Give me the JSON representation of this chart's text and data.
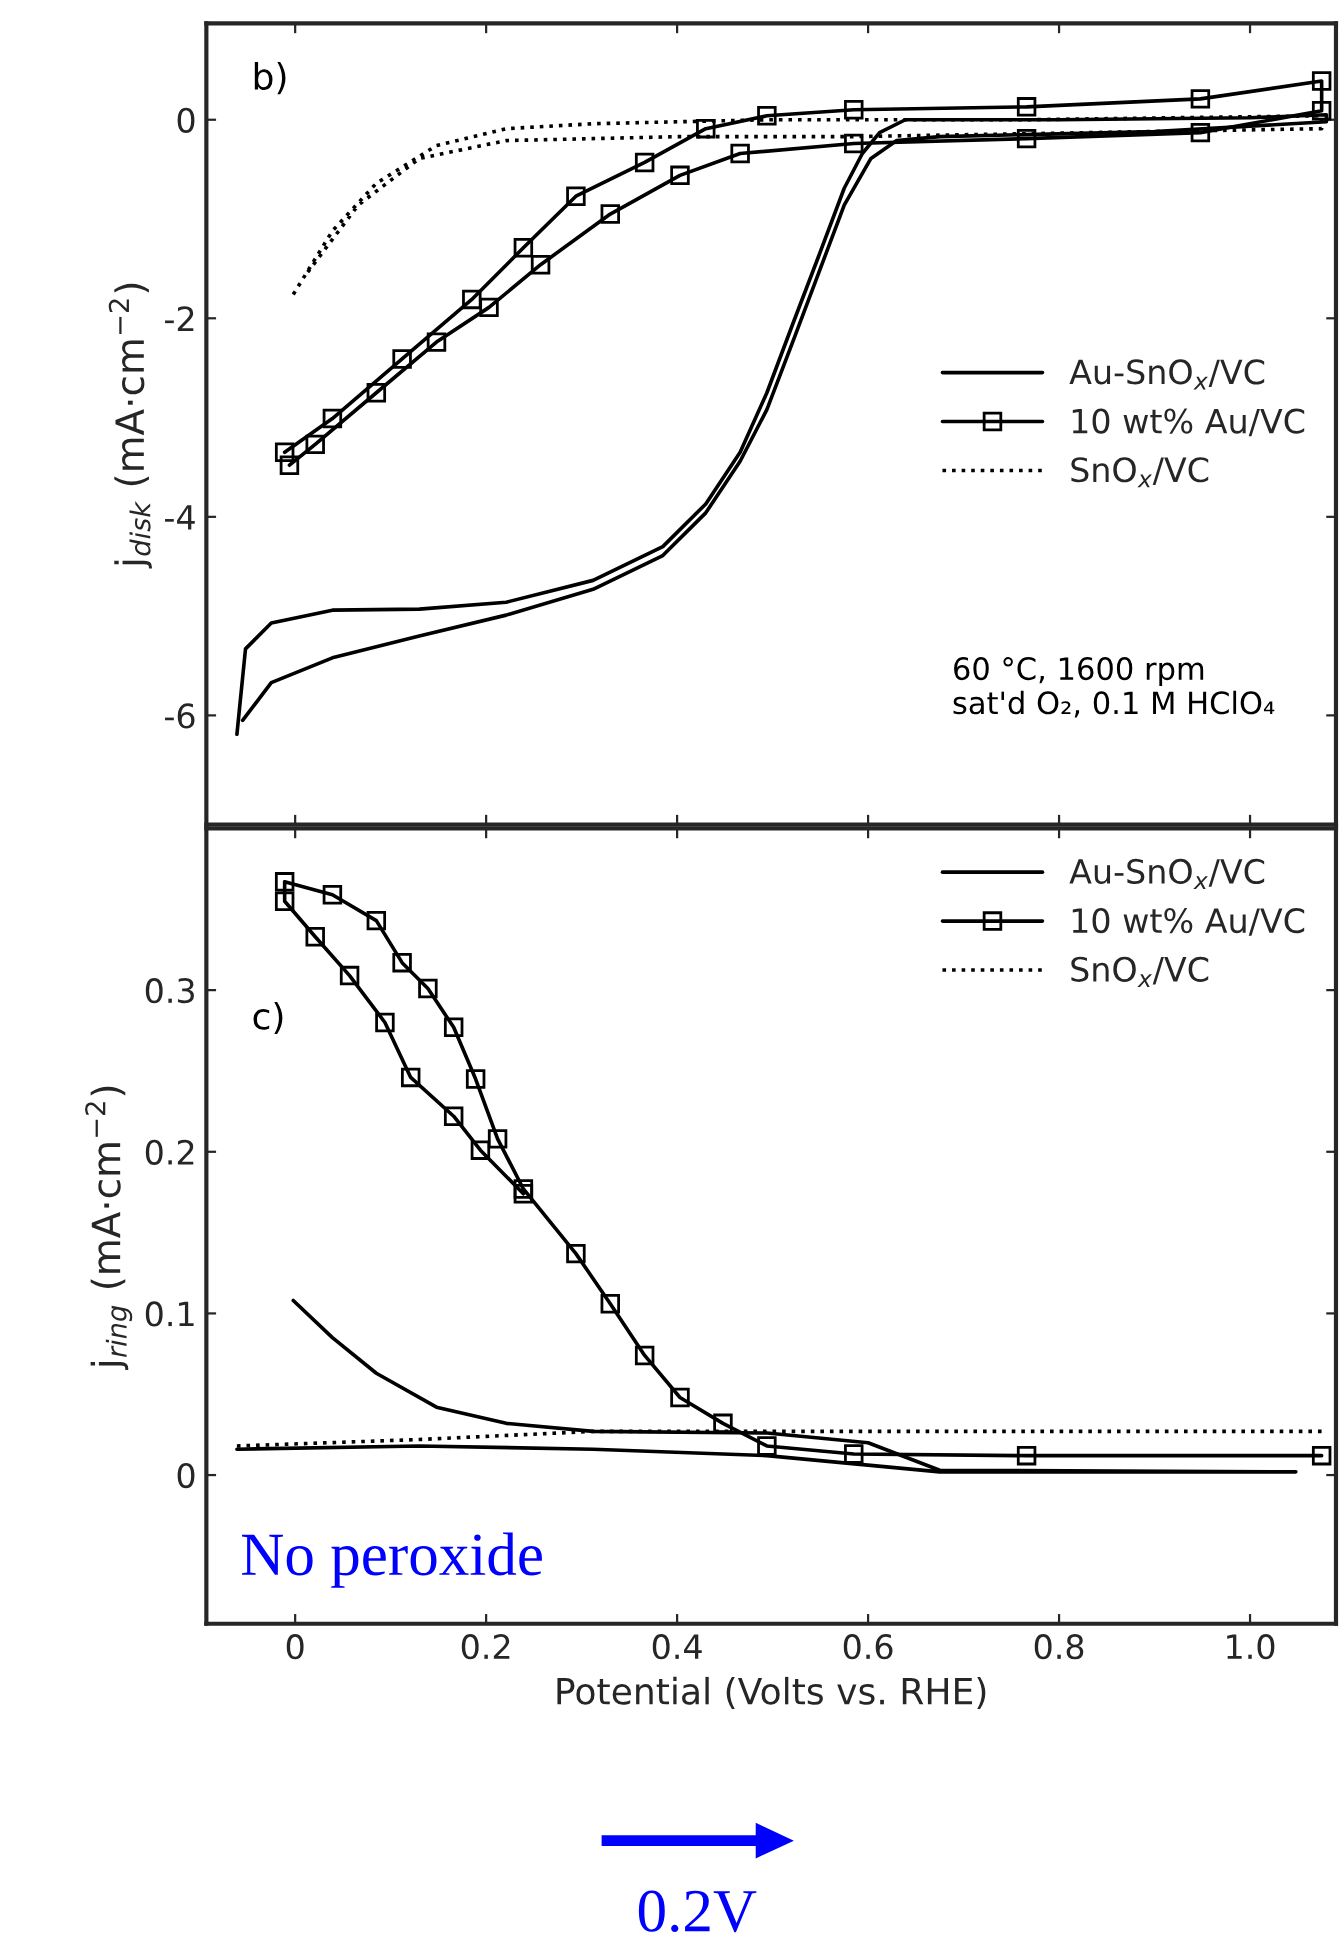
{
  "chart_data": [
    {
      "type": "line",
      "ylabel": "j$_{disk}$ (mA·cm$^{−2}$)",
      "xlim": [
        -0.093,
        1.09
      ],
      "xticks": [
        0,
        0.2,
        0.4,
        0.6,
        0.8,
        1.0
      ],
      "ylim": [
        -7.1,
        0.97
      ],
      "yticks": [
        {
          "value": -6,
          "label": "-6"
        },
        {
          "value": -4,
          "label": "-4"
        },
        {
          "value": -2,
          "label": "-2"
        },
        0
      ],
      "tick_labels": "y",
      "grid": false,
      "legend": "right",
      "annotations": [
        "b)",
        "60 °C, 1600 rpm\nsat'd O₂, 0.1 M HClO₄"
      ],
      "series": [
        {
          "name": "Au-SnO$_{x}$/VC",
          "color": "#000000",
          "marker": "none",
          "line_style": "solid",
          "x": [
            -0.061,
            -0.052,
            -0.025,
            0.039,
            0.13,
            0.221,
            0.312,
            0.385,
            0.43,
            0.466,
            0.494,
            0.521,
            0.548,
            0.575,
            0.594,
            0.612,
            0.639,
            0.8,
            1.0,
            1.08,
            1.08,
            0.9,
            0.675,
            0.63,
            0.603,
            0.575,
            0.548,
            0.521,
            0.494,
            0.466,
            0.43,
            0.385,
            0.312,
            0.221,
            0.13,
            0.039,
            -0.025,
            -0.055
          ],
          "values": [
            -6.19,
            -5.33,
            -5.07,
            -4.94,
            -4.93,
            -4.86,
            -4.64,
            -4.3,
            -3.87,
            -3.35,
            -2.75,
            -2.06,
            -1.38,
            -0.69,
            -0.34,
            -0.13,
            0.0,
            0.0,
            0.02,
            0.05,
            -0.02,
            -0.12,
            -0.17,
            -0.21,
            -0.39,
            -0.86,
            -1.55,
            -2.24,
            -2.92,
            -3.44,
            -3.96,
            -4.39,
            -4.73,
            -4.99,
            -5.2,
            -5.42,
            -5.67,
            -6.05
          ]
        },
        {
          "name": "10 wt% Au/VC",
          "color": "#000000",
          "marker": "square",
          "line_style": "solid",
          "x": [
            -0.011,
            0.039,
            0.112,
            0.185,
            0.239,
            0.294,
            0.366,
            0.43,
            0.494,
            0.585,
            0.766,
            0.948,
            1.075,
            1.075,
            0.948,
            0.766,
            0.585,
            0.466,
            0.403,
            0.33,
            0.257,
            0.203,
            0.148,
            0.085,
            0.021,
            -0.006
          ],
          "values": [
            -3.35,
            -3.01,
            -2.41,
            -1.81,
            -1.29,
            -0.77,
            -0.43,
            -0.09,
            0.04,
            0.1,
            0.13,
            0.21,
            0.39,
            0.09,
            -0.13,
            -0.19,
            -0.24,
            -0.34,
            -0.56,
            -0.95,
            -1.46,
            -1.89,
            -2.24,
            -2.75,
            -3.27,
            -3.48
          ]
        },
        {
          "name": "SnO$_{x}$/VC",
          "color": "#000000",
          "marker": "none",
          "line_style": "dotted",
          "x": [
            -0.002,
            0.039,
            0.085,
            0.148,
            0.221,
            0.312,
            0.494,
            0.766,
            1.075,
            1.075,
            0.585,
            0.403,
            0.221,
            0.13,
            0.066,
            0.012
          ],
          "values": [
            -1.76,
            -1.12,
            -0.64,
            -0.26,
            -0.09,
            -0.04,
            0.0,
            0.0,
            0.04,
            -0.09,
            -0.17,
            -0.17,
            -0.21,
            -0.39,
            -0.86,
            -1.55
          ]
        }
      ]
    },
    {
      "type": "line",
      "xlabel": "Potential (Volts vs. RHE)",
      "ylabel": "j$_{ring}$ (mA·cm$^{−2}$)",
      "xlim": [
        -0.093,
        1.09
      ],
      "xticks": [
        {
          "value": 0,
          "label": "0"
        },
        0.2,
        0.4,
        0.6,
        0.8,
        {
          "value": 1.0,
          "label": "1.0"
        }
      ],
      "ylim": [
        -0.092,
        0.4
      ],
      "yticks": [
        0,
        0.1,
        0.2,
        0.3
      ],
      "grid": false,
      "legend": "top right",
      "annotations": [
        "c)",
        "No peroxide",
        "0.2V"
      ],
      "series": [
        {
          "name": "Au-SnO$_{x}$/VC",
          "color": "#000000",
          "marker": "none",
          "line_style": "solid",
          "x": [
            -0.002,
            0.039,
            0.085,
            0.148,
            0.221,
            0.312,
            0.494,
            0.6,
            0.675,
            1.048,
            0.675,
            0.494,
            0.312,
            0.13,
            -0.061
          ],
          "values": [
            0.108,
            0.085,
            0.063,
            0.042,
            0.032,
            0.027,
            0.026,
            0.02,
            0.003,
            0.002,
            0.002,
            0.012,
            0.016,
            0.018,
            0.016
          ]
        },
        {
          "name": "10 wt% Au/VC",
          "color": "#000000",
          "marker": "square",
          "line_style": "solid",
          "x": [
            1.075,
            0.766,
            0.585,
            0.494,
            0.448,
            0.403,
            0.366,
            0.33,
            0.294,
            0.239,
            0.212,
            0.189,
            0.166,
            0.139,
            0.112,
            0.085,
            0.039,
            -0.011,
            -0.011,
            0.021,
            0.057,
            0.094,
            0.121,
            0.166,
            0.194,
            0.239
          ],
          "values": [
            0.012,
            0.012,
            0.013,
            0.018,
            0.032,
            0.048,
            0.074,
            0.106,
            0.137,
            0.177,
            0.208,
            0.245,
            0.277,
            0.301,
            0.317,
            0.343,
            0.359,
            0.367,
            0.355,
            0.333,
            0.309,
            0.28,
            0.246,
            0.222,
            0.201,
            0.174
          ]
        },
        {
          "name": "SnO$_{x}$/VC",
          "color": "#000000",
          "marker": "none",
          "line_style": "dotted",
          "x": [
            -0.061,
            0.13,
            0.312,
            0.6,
            1.08
          ],
          "values": [
            0.018,
            0.022,
            0.027,
            0.027,
            0.027
          ]
        }
      ]
    }
  ]
}
